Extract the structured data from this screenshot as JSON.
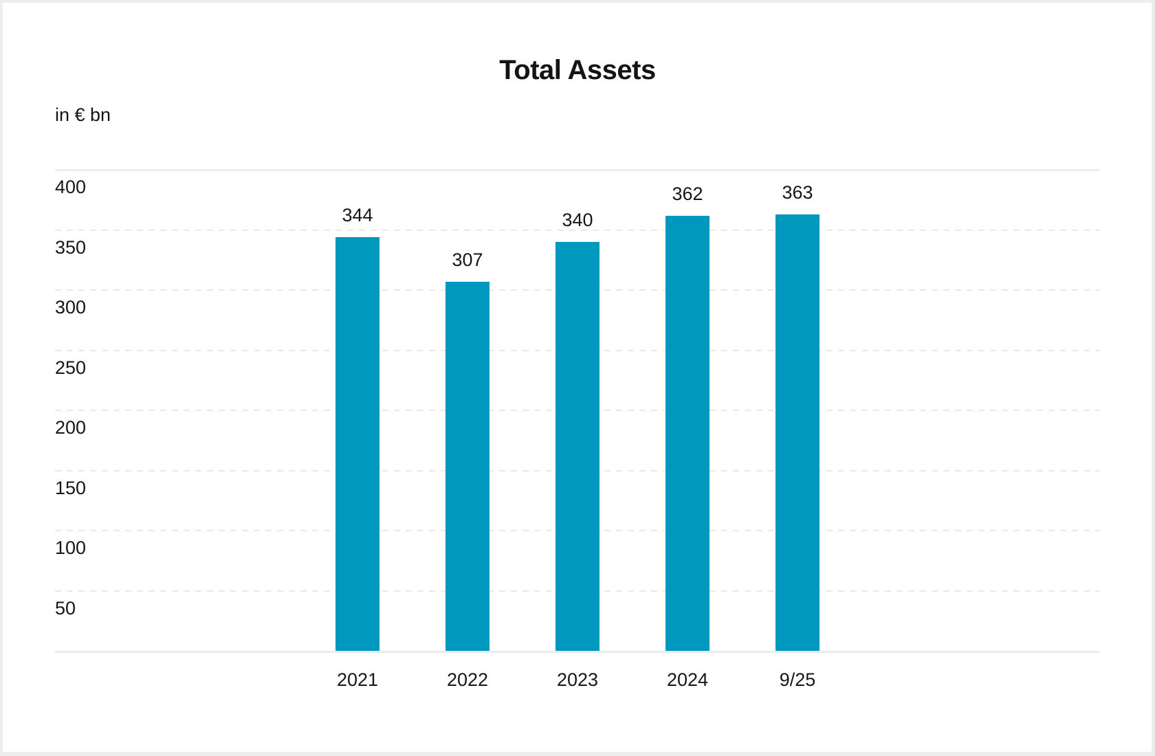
{
  "chart_data": {
    "type": "bar",
    "title": "Total Assets",
    "ylabel": "in € bn",
    "categories": [
      "2021",
      "2022",
      "2023",
      "2024",
      "9/25"
    ],
    "values": [
      344,
      307,
      340,
      362,
      363
    ],
    "ylim": [
      0,
      400
    ],
    "yticks": [
      50,
      100,
      150,
      200,
      250,
      300,
      350,
      400
    ],
    "grid": "horizontal, dashed; top gridline solid; baseline solid",
    "legend": "none",
    "value_labels_shown": true
  },
  "colors": {
    "bar": "#0098BD",
    "grid_dashed": "#e9e9e9",
    "grid_solid": "#eeeeee",
    "axis_line": "#ececec",
    "text": "#161616",
    "frame_border": "#ededed",
    "background": "#ffffff"
  }
}
